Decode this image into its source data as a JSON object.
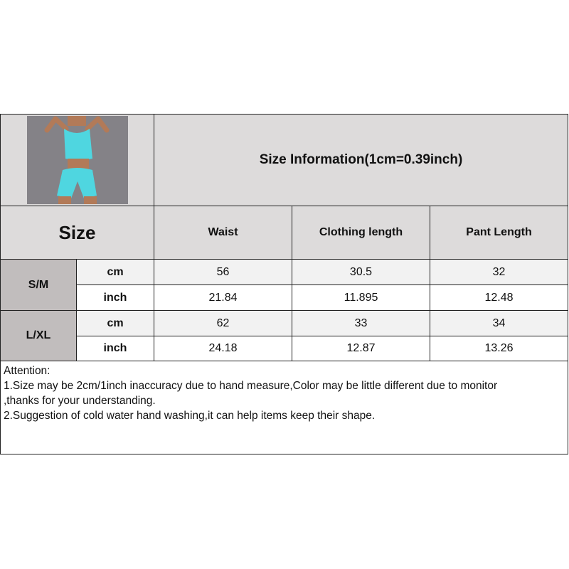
{
  "title": "Size Information(1cm=0.39inch)",
  "size_header": "Size",
  "columns": [
    "Waist",
    "Clothing length",
    "Pant Length"
  ],
  "rows": [
    {
      "size": "S/M",
      "cm_label": "cm",
      "inch_label": "inch",
      "cm": [
        "56",
        "30.5",
        "32"
      ],
      "inch": [
        "21.84",
        "11.895",
        "12.48"
      ]
    },
    {
      "size": "L/XL",
      "cm_label": "cm",
      "inch_label": "inch",
      "cm": [
        "62",
        "33",
        "34"
      ],
      "inch": [
        "24.18",
        "12.87",
        "13.26"
      ]
    }
  ],
  "notes": [
    "Attention:",
    "1.Size may be 2cm/1inch inaccuracy due to hand measure,Color may be little different due to monitor",
    ",thanks for your understanding.",
    "2.Suggestion of cold water hand washing,it can help items keep their shape."
  ],
  "colors": {
    "header_bg": "#dddbdb",
    "size_label_bg": "#c1bdbd",
    "cm_row_bg": "#f2f2f2",
    "garment": "#4fd6e0"
  }
}
